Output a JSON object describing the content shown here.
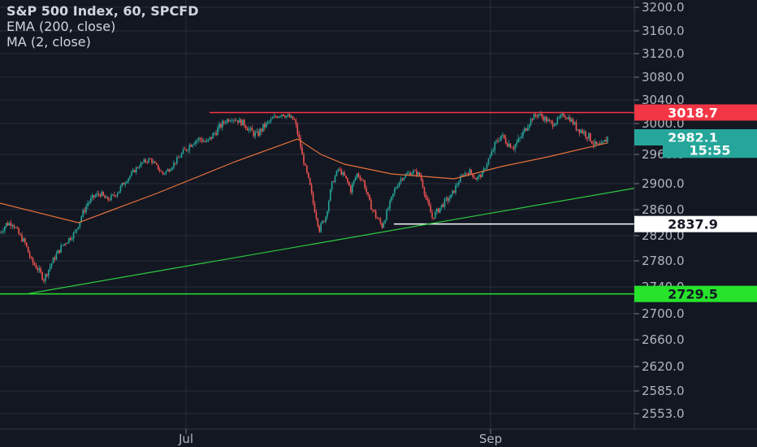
{
  "legend": {
    "title": "S&P 500 Index, 60, SPCFD",
    "ema": "EMA (200, close)",
    "ma": "MA (2, close)"
  },
  "colors": {
    "background": "#131722",
    "grid": "#2a2e39",
    "up": "#26a69a",
    "down": "#ef5350",
    "ema": "#e8713a",
    "red_line": "#f23645",
    "white_line": "#ffffff",
    "green_line": "#27e32c",
    "trend_line": "#2ecc40"
  },
  "chart_data": {
    "type": "candlestick",
    "title": "S&P 500 Index, 60, SPCFD",
    "indicators": [
      "EMA (200, close)",
      "MA (2, close)"
    ],
    "y_ticks": [
      "3200.0",
      "3160.0",
      "3120.0",
      "3080.0",
      "3040.0",
      "3000.0",
      "2960.0",
      "2900.0",
      "2860.0",
      "2820.0",
      "2780.0",
      "2740.0",
      "2700.0",
      "2660.0",
      "2620.0",
      "2585.0",
      "2553.0"
    ],
    "x_ticks": [
      "Jul",
      "Sep"
    ],
    "grid": true,
    "price_tags": [
      {
        "label": "3018.7",
        "value": 3018.7,
        "color": "#f23645",
        "text_color": "#ffffff"
      },
      {
        "label": "2982.1",
        "value": 2982.1,
        "color": "#26a69a",
        "text_color": "#ffffff"
      },
      {
        "label": "15:55",
        "value": 2966.0,
        "color": "#26a69a",
        "text_color": "#ffffff"
      },
      {
        "label": "2837.9",
        "value": 2837.9,
        "color": "#ffffff",
        "text_color": "#131722"
      },
      {
        "label": "2729.5",
        "value": 2729.5,
        "color": "#27e32c",
        "text_color": "#131722"
      }
    ],
    "horizontal_lines": [
      {
        "value": 3018.7,
        "color": "#f23645",
        "from": "early-July",
        "to": "right-edge"
      },
      {
        "value": 2837.9,
        "color": "#ffffff",
        "from": "mid-August",
        "to": "right-edge"
      },
      {
        "value": 2729.5,
        "color": "#27e32c",
        "from": "left-edge",
        "to": "right-edge"
      }
    ],
    "trend_line": {
      "start": 2730,
      "end": 2893,
      "color": "#2ecc40"
    },
    "price_path": [
      [
        0,
        2825
      ],
      [
        4,
        2838
      ],
      [
        8,
        2840
      ],
      [
        12,
        2822
      ],
      [
        16,
        2808
      ],
      [
        20,
        2780
      ],
      [
        24,
        2768
      ],
      [
        28,
        2752
      ],
      [
        32,
        2772
      ],
      [
        36,
        2790
      ],
      [
        40,
        2805
      ],
      [
        44,
        2815
      ],
      [
        48,
        2825
      ],
      [
        52,
        2850
      ],
      [
        56,
        2870
      ],
      [
        60,
        2880
      ],
      [
        64,
        2885
      ],
      [
        68,
        2875
      ],
      [
        72,
        2880
      ],
      [
        76,
        2890
      ],
      [
        80,
        2905
      ],
      [
        84,
        2920
      ],
      [
        88,
        2935
      ],
      [
        92,
        2945
      ],
      [
        96,
        2950
      ],
      [
        100,
        2935
      ],
      [
        104,
        2920
      ],
      [
        108,
        2930
      ],
      [
        112,
        2945
      ],
      [
        116,
        2960
      ],
      [
        120,
        2970
      ],
      [
        124,
        2978
      ],
      [
        128,
        2980
      ],
      [
        132,
        2975
      ],
      [
        136,
        2985
      ],
      [
        140,
        2995
      ],
      [
        144,
        3005
      ],
      [
        148,
        3010
      ],
      [
        152,
        3005
      ],
      [
        156,
        3000
      ],
      [
        160,
        2990
      ],
      [
        164,
        2985
      ],
      [
        168,
        2995
      ],
      [
        172,
        3003
      ],
      [
        176,
        3012
      ],
      [
        180,
        3017
      ],
      [
        184,
        3012
      ],
      [
        188,
        3005
      ],
      [
        192,
        2970
      ],
      [
        196,
        2920
      ],
      [
        200,
        2870
      ],
      [
        204,
        2830
      ],
      [
        208,
        2850
      ],
      [
        212,
        2900
      ],
      [
        216,
        2930
      ],
      [
        220,
        2915
      ],
      [
        224,
        2890
      ],
      [
        228,
        2920
      ],
      [
        232,
        2905
      ],
      [
        236,
        2870
      ],
      [
        240,
        2850
      ],
      [
        244,
        2835
      ],
      [
        248,
        2862
      ],
      [
        252,
        2890
      ],
      [
        256,
        2910
      ],
      [
        260,
        2920
      ],
      [
        264,
        2925
      ],
      [
        268,
        2918
      ],
      [
        272,
        2878
      ],
      [
        276,
        2848
      ],
      [
        280,
        2860
      ],
      [
        284,
        2872
      ],
      [
        288,
        2880
      ],
      [
        292,
        2900
      ],
      [
        296,
        2920
      ],
      [
        300,
        2925
      ],
      [
        304,
        2910
      ],
      [
        308,
        2920
      ],
      [
        312,
        2950
      ],
      [
        316,
        2972
      ],
      [
        320,
        2985
      ],
      [
        324,
        2975
      ],
      [
        328,
        2970
      ],
      [
        332,
        2980
      ],
      [
        336,
        2995
      ],
      [
        340,
        3010
      ],
      [
        344,
        3016
      ],
      [
        348,
        3008
      ],
      [
        352,
        3000
      ],
      [
        356,
        3005
      ],
      [
        360,
        3015
      ],
      [
        364,
        3008
      ],
      [
        368,
        2995
      ],
      [
        372,
        2990
      ],
      [
        376,
        2983
      ],
      [
        380,
        2972
      ],
      [
        384,
        2970
      ],
      [
        388,
        2982
      ]
    ],
    "ema_path": [
      [
        0,
        2870
      ],
      [
        50,
        2840
      ],
      [
        100,
        2885
      ],
      [
        150,
        2945
      ],
      [
        190,
        2980
      ],
      [
        205,
        2960
      ],
      [
        220,
        2940
      ],
      [
        250,
        2920
      ],
      [
        290,
        2910
      ],
      [
        320,
        2935
      ],
      [
        350,
        2955
      ],
      [
        388,
        2975
      ]
    ]
  }
}
